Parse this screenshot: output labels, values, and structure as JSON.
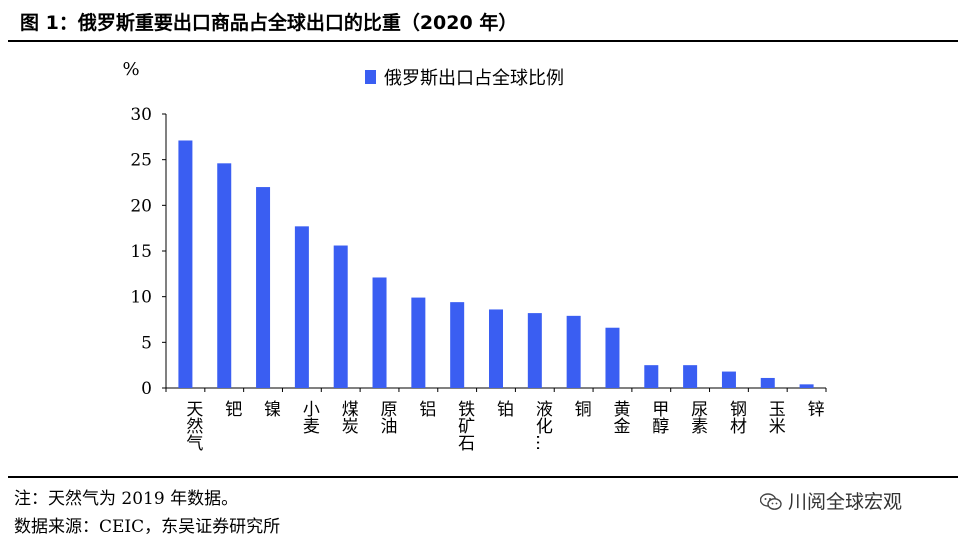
{
  "figure": {
    "title": "图 1：俄罗斯重要出口商品占全球出口的比重（2020 年）"
  },
  "chart_data": {
    "type": "bar",
    "unit_label": "%",
    "categories": [
      "天然气",
      "钯",
      "镍",
      "小麦",
      "煤炭",
      "原油",
      "铝",
      "铁矿石",
      "铂",
      "液化…",
      "铜",
      "黄金",
      "甲醇",
      "尿素",
      "钢材",
      "玉米",
      "锌"
    ],
    "series": [
      {
        "name": "俄罗斯出口占全球比例",
        "values": [
          27.1,
          24.6,
          22.0,
          17.7,
          15.6,
          12.1,
          9.9,
          9.4,
          8.6,
          8.2,
          7.9,
          6.6,
          2.5,
          2.5,
          1.8,
          1.1,
          0.4
        ]
      }
    ],
    "yticks": [
      0,
      5,
      10,
      15,
      20,
      25,
      30
    ],
    "ylim": [
      0,
      30
    ],
    "legend_position": "top",
    "grid": false,
    "bar_color": "#3a5ef2"
  },
  "notes": {
    "note": "注：天然气为 2019 年数据。",
    "source": "数据来源：CEIC，东吴证券研究所"
  },
  "watermark": {
    "text": "川阅全球宏观",
    "icon": "wechat-icon"
  }
}
